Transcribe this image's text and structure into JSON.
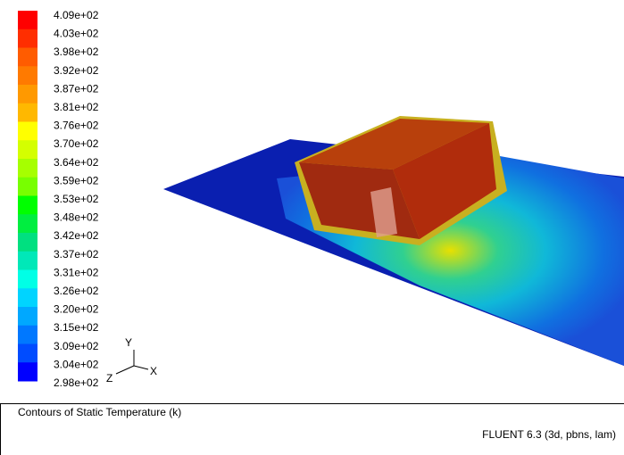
{
  "colorbar": {
    "labels": [
      "4.09e+02",
      "4.03e+02",
      "3.98e+02",
      "3.92e+02",
      "3.87e+02",
      "3.81e+02",
      "3.76e+02",
      "3.70e+02",
      "3.64e+02",
      "3.59e+02",
      "3.53e+02",
      "3.48e+02",
      "3.42e+02",
      "3.37e+02",
      "3.31e+02",
      "3.26e+02",
      "3.20e+02",
      "3.15e+02",
      "3.09e+02",
      "3.04e+02",
      "2.98e+02"
    ],
    "colors": [
      "#ff0000",
      "#ff2e00",
      "#ff5c00",
      "#ff7a00",
      "#ff9900",
      "#ffb800",
      "#ffff00",
      "#d4ff00",
      "#a6ff00",
      "#78ff00",
      "#00ff00",
      "#00ee40",
      "#00e080",
      "#00e8b8",
      "#00ffe6",
      "#00d4ff",
      "#00a8ff",
      "#0078ff",
      "#004cff",
      "#0000ff"
    ]
  },
  "axes": {
    "y": "Y",
    "z": "Z",
    "x": "X"
  },
  "footer": {
    "title": "Contours of Static Temperature (k)",
    "version": "FLUENT 6.3 (3d, pbns, lam)"
  }
}
